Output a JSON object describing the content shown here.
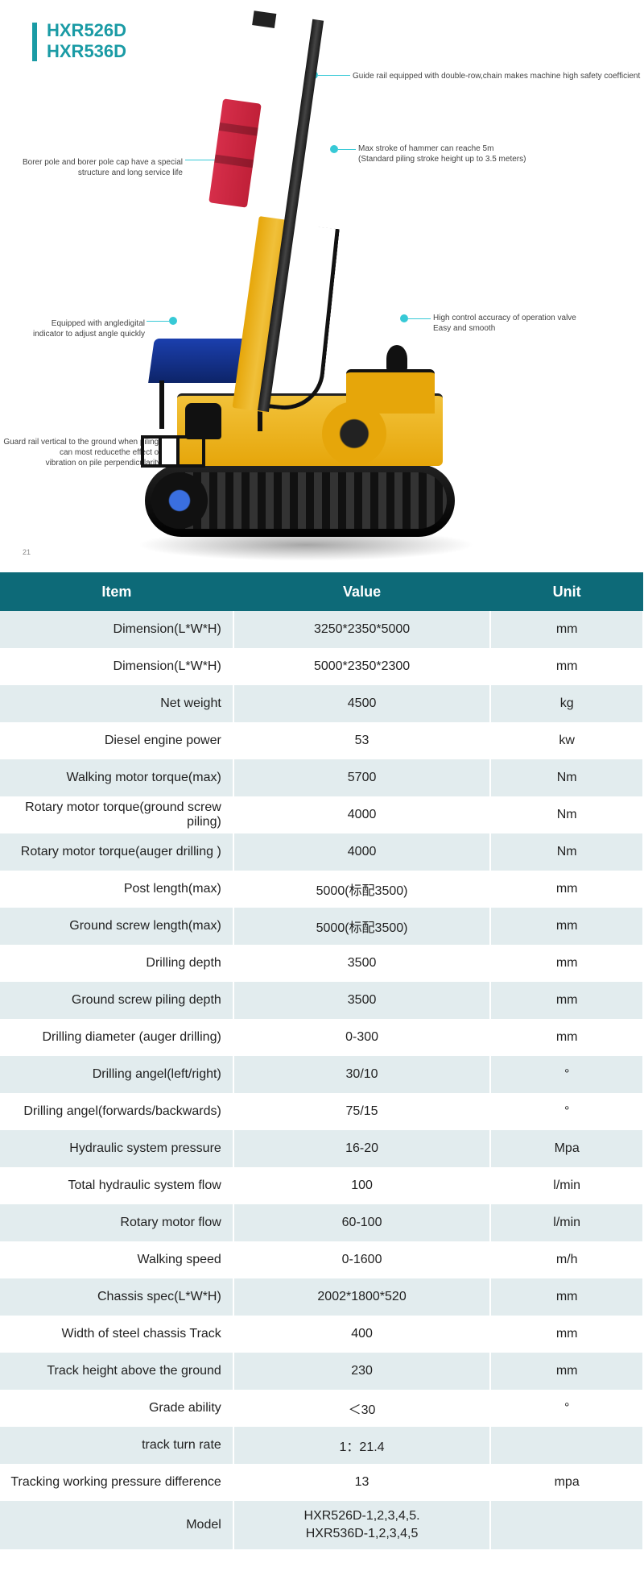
{
  "header": {
    "title": "HXR526D\nHXR536D",
    "page_number": "21",
    "accent_color": "#1a9ba5"
  },
  "callouts": {
    "left1": "Borer pole and borer pole cap have a special\nstructure and long service life",
    "left2": "Equipped with angledigital\nindicator to adjust angle quickly",
    "left3": "Guard rail vertical to the ground when piling,\ncan most reducethe effect of\nvibration on pile perpendicularity",
    "right1": "Guide rail equipped with double-row,chain makes machine high safety coefficient",
    "right2a": "Max stroke of hammer can reache 5m",
    "right2b": "(Standard piling stroke height up to 3.5 meters)",
    "right3a": "High control accuracy of operation valve",
    "right3b": "Easy and smooth"
  },
  "table": {
    "header_bg": "#0d6a78",
    "row_alt_bg": "#e2ecee",
    "columns": [
      "Item",
      "Value",
      "Unit"
    ],
    "rows": [
      {
        "item": "Dimension(L*W*H)",
        "value": "3250*2350*5000",
        "unit": "mm"
      },
      {
        "item": "Dimension(L*W*H)",
        "value": "5000*2350*2300",
        "unit": "mm"
      },
      {
        "item": "Net weight",
        "value": "4500",
        "unit": "kg"
      },
      {
        "item": "Diesel engine power",
        "value": "53",
        "unit": "kw"
      },
      {
        "item": "Walking motor torque(max)",
        "value": "5700",
        "unit": "Nm"
      },
      {
        "item": "Rotary motor torque(ground screw piling)",
        "value": "4000",
        "unit": "Nm"
      },
      {
        "item": "Rotary motor torque(auger drilling )",
        "value": "4000",
        "unit": "Nm"
      },
      {
        "item": "Post length(max)",
        "value": "5000(标配3500)",
        "unit": "mm"
      },
      {
        "item": "Ground screw length(max)",
        "value": "5000(标配3500)",
        "unit": "mm"
      },
      {
        "item": "Drilling depth",
        "value": "3500",
        "unit": "mm"
      },
      {
        "item": "Ground screw piling depth",
        "value": "3500",
        "unit": "mm"
      },
      {
        "item": "Drilling diameter  (auger drilling)",
        "value": "0-300",
        "unit": "mm"
      },
      {
        "item": "Drilling angel(left/right)",
        "value": "30/10",
        "unit": "°"
      },
      {
        "item": "Drilling angel(forwards/backwards)",
        "value": "75/15",
        "unit": "°"
      },
      {
        "item": "Hydraulic system pressure",
        "value": "16-20",
        "unit": "Mpa"
      },
      {
        "item": "Total hydraulic system flow",
        "value": "100",
        "unit": "l/min"
      },
      {
        "item": "Rotary motor flow",
        "value": "60-100",
        "unit": "l/min"
      },
      {
        "item": "Walking speed",
        "value": "0-1600",
        "unit": "m/h"
      },
      {
        "item": "Chassis spec(L*W*H)",
        "value": "2002*1800*520",
        "unit": "mm"
      },
      {
        "item": "Width of steel chassis Track",
        "value": "400",
        "unit": "mm"
      },
      {
        "item": "Track height above the ground",
        "value": "230",
        "unit": "mm"
      },
      {
        "item": "Grade ability",
        "value": "＜30",
        "unit": "°"
      },
      {
        "item": "track turn rate",
        "value": "1：21.4",
        "unit": ""
      },
      {
        "item": "Tracking working pressure difference",
        "value": "13",
        "unit": "mpa"
      },
      {
        "item": "Model",
        "value": "HXR526D-1,2,3,4,5.\nHXR536D-1,2,3,4,5",
        "unit": ""
      }
    ]
  }
}
